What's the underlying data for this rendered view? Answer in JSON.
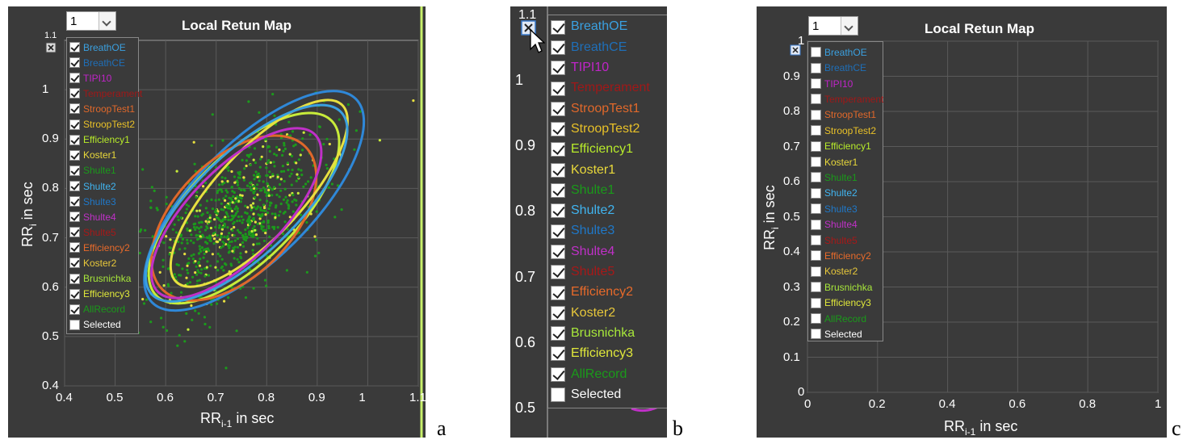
{
  "dropdown_value": "1",
  "panel_title": "Local Retun Map",
  "toolbar_label": "1.1",
  "colors": {
    "background": "#3a3a3a",
    "grid": "#5a5a5a",
    "points": "#1c9a1c",
    "accent_border": "#c8f06a"
  },
  "icons": [
    "legend-toggle-icon",
    "mouse-cursor-icon",
    "chevron-down-icon",
    "check-icon"
  ],
  "legend": [
    {
      "label": "BreathOE",
      "color": "#3aa0e0"
    },
    {
      "label": "BreathCE",
      "color": "#1f6fb8"
    },
    {
      "label": "TIPI10",
      "color": "#c024c8"
    },
    {
      "label": "Temperament",
      "color": "#a01818"
    },
    {
      "label": "StroopTest1",
      "color": "#e0682a"
    },
    {
      "label": "StroopTest2",
      "color": "#e8c028"
    },
    {
      "label": "Efficiency1",
      "color": "#b8ec2a"
    },
    {
      "label": "Koster1",
      "color": "#e8d83a"
    },
    {
      "label": "Shulte1",
      "color": "#1a9a1a"
    },
    {
      "label": "Shulte2",
      "color": "#40b4f0"
    },
    {
      "label": "Shulte3",
      "color": "#1f78c8"
    },
    {
      "label": "Shulte4",
      "color": "#c030c8"
    },
    {
      "label": "Shulte5",
      "color": "#a81818"
    },
    {
      "label": "Efficiency2",
      "color": "#e86a2a"
    },
    {
      "label": "Koster2",
      "color": "#e8c83a"
    },
    {
      "label": "Brusnichka",
      "color": "#a8e83a"
    },
    {
      "label": "Efficiency3",
      "color": "#e0e83a"
    },
    {
      "label": "AllRecord",
      "color": "#1a9a1a"
    },
    {
      "label": "Selected",
      "color": "#ffffff"
    }
  ],
  "fig_labels": {
    "a": "a",
    "b": "b",
    "c": "c"
  },
  "chart_data": [
    {
      "type": "scatter",
      "panel": "a",
      "title": "Local Retun Map",
      "xlabel": "RR",
      "xlabel_sub": "i-1",
      "xlabel_suffix": " in sec",
      "ylabel": "RR",
      "ylabel_sub": "i",
      "ylabel_suffix": " in sec",
      "xlim": [
        0.4,
        1.1
      ],
      "ylim": [
        0.4,
        1.1
      ],
      "xticks": [
        0.4,
        0.5,
        0.6,
        0.7,
        0.8,
        0.9,
        1,
        1.1
      ],
      "xtick_labels": [
        "0.4",
        "0.5",
        "0.6",
        "0.7",
        "0.8",
        "0.9",
        "1",
        "1.1"
      ],
      "yticks": [
        0.4,
        0.5,
        0.6,
        0.7,
        0.8,
        0.9,
        1
      ],
      "ytick_labels": [
        "0.4",
        "0.5",
        "0.6",
        "0.7",
        "0.8",
        "0.9",
        "1"
      ],
      "grid": true,
      "legend_state": "all-checked",
      "point_cloud": {
        "center": [
          0.74,
          0.74
        ],
        "spread": [
          0.09,
          0.09
        ],
        "rho": 0.6,
        "count": 900
      },
      "ellipses": [
        {
          "cx": 0.775,
          "cy": 0.775,
          "rx": 0.285,
          "ry": 0.115,
          "angle_deg": 45,
          "color": "#2f88d8"
        },
        {
          "cx": 0.755,
          "cy": 0.76,
          "rx": 0.245,
          "ry": 0.105,
          "angle_deg": 45,
          "color": "#c8ec3a"
        },
        {
          "cx": 0.735,
          "cy": 0.74,
          "rx": 0.2,
          "ry": 0.115,
          "angle_deg": 45,
          "color": "#e0682a"
        },
        {
          "cx": 0.785,
          "cy": 0.79,
          "rx": 0.24,
          "ry": 0.085,
          "angle_deg": 47,
          "color": "#e8e040"
        },
        {
          "cx": 0.74,
          "cy": 0.75,
          "rx": 0.22,
          "ry": 0.09,
          "angle_deg": 45,
          "color": "#c030c8"
        },
        {
          "cx": 0.76,
          "cy": 0.77,
          "rx": 0.26,
          "ry": 0.1,
          "angle_deg": 44,
          "color": "#3aa0e0"
        }
      ]
    },
    {
      "type": "scatter",
      "panel": "b",
      "ylim": [
        0.45,
        1.1
      ],
      "yticks": [
        0.5,
        0.6,
        0.7,
        0.8,
        0.9,
        1
      ],
      "ytick_labels": [
        "0.5",
        "0.6",
        "0.7",
        "0.8",
        "0.9",
        "1"
      ],
      "legend_state": "all-checked"
    },
    {
      "type": "scatter",
      "panel": "c",
      "title": "Local Retun Map",
      "xlabel": "RR",
      "xlabel_sub": "i-1",
      "xlabel_suffix": " in sec",
      "ylabel": "RR",
      "ylabel_sub": "i",
      "ylabel_suffix": " in sec",
      "xlim": [
        0,
        1
      ],
      "ylim": [
        0,
        1
      ],
      "xticks": [
        0,
        0.2,
        0.4,
        0.6,
        0.8,
        1
      ],
      "xtick_labels": [
        "0",
        "0.2",
        "0.4",
        "0.6",
        "0.8",
        "1"
      ],
      "yticks": [
        0,
        0.1,
        0.2,
        0.3,
        0.4,
        0.5,
        0.6,
        0.7,
        0.8,
        0.9,
        1
      ],
      "ytick_labels": [
        "0",
        "0.1",
        "0.2",
        "0.3",
        "0.4",
        "0.5",
        "0.6",
        "0.7",
        "0.8",
        "0.9",
        "1"
      ],
      "grid": true,
      "legend_state": "all-unchecked"
    }
  ]
}
